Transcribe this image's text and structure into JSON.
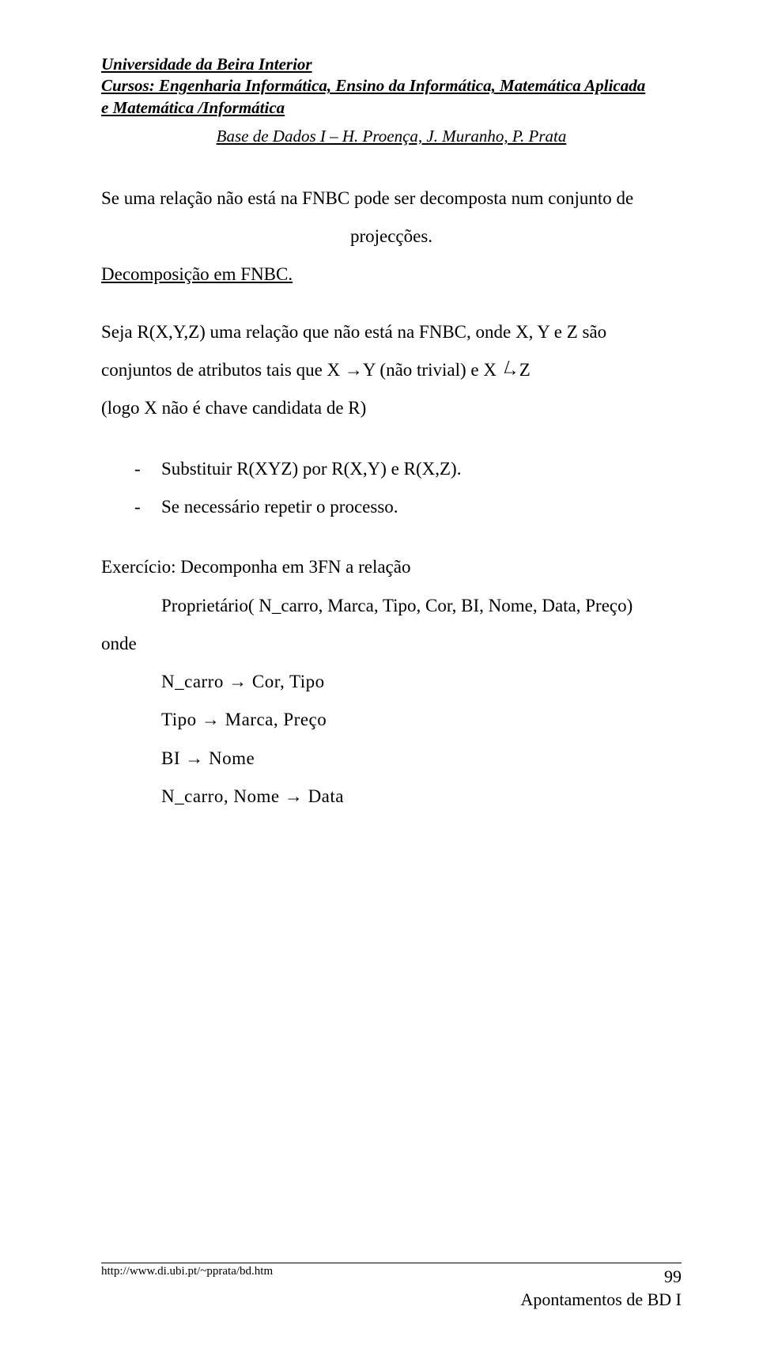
{
  "header": {
    "line1": "Universidade da Beira Interior",
    "line2": "Cursos: Engenharia Informática, Ensino da Informática, Matemática Aplicada",
    "line3": "e Matemática /Informática",
    "subhead": "Base de Dados I – H. Proença, J. Muranho, P. Prata"
  },
  "body": {
    "p1a": "Se uma relação não está na FNBC pode ser decomposta num conjunto de",
    "p1b": "projecções.",
    "decomp_label": "Decomposição em FNBC.",
    "p2a": "Seja R(X,Y,Z) uma relação que não está na FNBC, onde X, Y e Z são",
    "p2b_prefix": "conjuntos de atributos tais que X ",
    "p2b_arrow1": "→",
    "p2b_mid": "Y (não trivial) e X ",
    "p2b_arrow2": "→",
    "p2b_suffix": "Z",
    "p2c": "(logo X não é chave candidata de R)"
  },
  "list": {
    "dash": "-",
    "item1": "Substituir R(XYZ) por R(X,Y) e R(X,Z).",
    "item2": "Se necessário repetir o processo."
  },
  "exercise": {
    "title": "Exercício: Decomponha em 3FN a relação",
    "rel": "Proprietário( N_carro, Marca, Tipo, Cor, BI, Nome, Data, Preço)",
    "onde": "onde",
    "fd1_left": "N_carro ",
    "fd1_arrow": "→",
    "fd1_right": " Cor, Tipo",
    "fd2_left": "Tipo ",
    "fd2_arrow": "→",
    "fd2_right": " Marca, Preço",
    "fd3_left": "BI ",
    "fd3_arrow": "→",
    "fd3_right": " Nome",
    "fd4_left": "N_carro, Nome ",
    "fd4_arrow": "→",
    "fd4_right": " Data"
  },
  "footer": {
    "url": "http://www.di.ubi.pt/~pprata/bd.htm",
    "page_no": "99",
    "series": "Apontamentos de BD I"
  }
}
